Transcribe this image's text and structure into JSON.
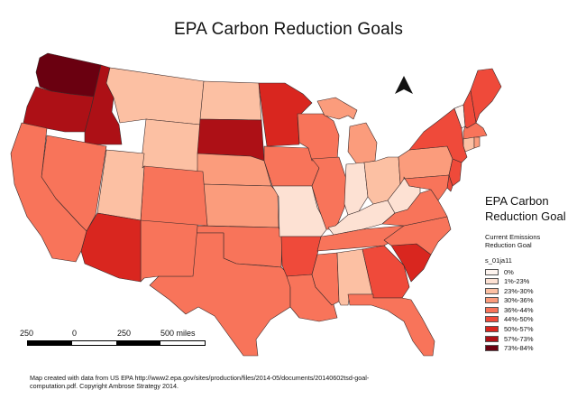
{
  "title": "EPA Carbon Reduction Goals",
  "legend": {
    "title": "EPA Carbon Reduction Goal",
    "subtitle": "Current Emissions\n Reduction Goal",
    "layer": "s_01ja11",
    "classes": [
      {
        "label": "0%",
        "color": "#fef4ef"
      },
      {
        "label": "1%-23%",
        "color": "#fde1d3"
      },
      {
        "label": "23%-30%",
        "color": "#fcc0a3"
      },
      {
        "label": "30%-36%",
        "color": "#fb9c7c"
      },
      {
        "label": "36%-44%",
        "color": "#f8745a"
      },
      {
        "label": "44%-50%",
        "color": "#ef4a3a"
      },
      {
        "label": "50%-57%",
        "color": "#d9261f"
      },
      {
        "label": "57%-73%",
        "color": "#ad1016"
      },
      {
        "label": "73%-84%",
        "color": "#6a0010"
      }
    ]
  },
  "scale": {
    "labels": [
      "250",
      "0",
      "250",
      "500 miles"
    ]
  },
  "north_arrow": "north-arrow-icon",
  "footer": "Map created with data from US EPA http://www2.epa.gov/sites/production/files/2014-05/documents/20140602tsd-goal-computation.pdf.  Copyright Ambrose Strategy 2014.",
  "states": [
    {
      "name": "WA",
      "class": 8
    },
    {
      "name": "OR",
      "class": 7
    },
    {
      "name": "ID",
      "class": 7
    },
    {
      "name": "MT",
      "class": 2
    },
    {
      "name": "WY",
      "class": 2
    },
    {
      "name": "ND",
      "class": 2
    },
    {
      "name": "SD",
      "class": 7
    },
    {
      "name": "NE",
      "class": 3
    },
    {
      "name": "KS",
      "class": 3
    },
    {
      "name": "OK",
      "class": 4
    },
    {
      "name": "TX",
      "class": 4
    },
    {
      "name": "NM",
      "class": 4
    },
    {
      "name": "CO",
      "class": 4
    },
    {
      "name": "UT",
      "class": 2
    },
    {
      "name": "AZ",
      "class": 6
    },
    {
      "name": "NV",
      "class": 4
    },
    {
      "name": "CA",
      "class": 4
    },
    {
      "name": "MN",
      "class": 6
    },
    {
      "name": "IA",
      "class": 4
    },
    {
      "name": "MO",
      "class": 1
    },
    {
      "name": "AR",
      "class": 5
    },
    {
      "name": "LA",
      "class": 4
    },
    {
      "name": "WI",
      "class": 4
    },
    {
      "name": "IL",
      "class": 4
    },
    {
      "name": "MI",
      "class": 3
    },
    {
      "name": "IN",
      "class": 1
    },
    {
      "name": "OH",
      "class": 2
    },
    {
      "name": "KY",
      "class": 1
    },
    {
      "name": "TN",
      "class": 4
    },
    {
      "name": "MS",
      "class": 4
    },
    {
      "name": "AL",
      "class": 2
    },
    {
      "name": "GA",
      "class": 5
    },
    {
      "name": "FL",
      "class": 4
    },
    {
      "name": "SC",
      "class": 6
    },
    {
      "name": "NC",
      "class": 4
    },
    {
      "name": "VA",
      "class": 4
    },
    {
      "name": "WV",
      "class": 1
    },
    {
      "name": "PA",
      "class": 3
    },
    {
      "name": "NY",
      "class": 5
    },
    {
      "name": "VT",
      "class": 0
    },
    {
      "name": "NH",
      "class": 5
    },
    {
      "name": "ME",
      "class": 5
    },
    {
      "name": "MA",
      "class": 4
    },
    {
      "name": "CT",
      "class": 2
    },
    {
      "name": "RI",
      "class": 3
    },
    {
      "name": "NJ",
      "class": 5
    },
    {
      "name": "DE",
      "class": 5
    },
    {
      "name": "MD",
      "class": 4
    }
  ]
}
